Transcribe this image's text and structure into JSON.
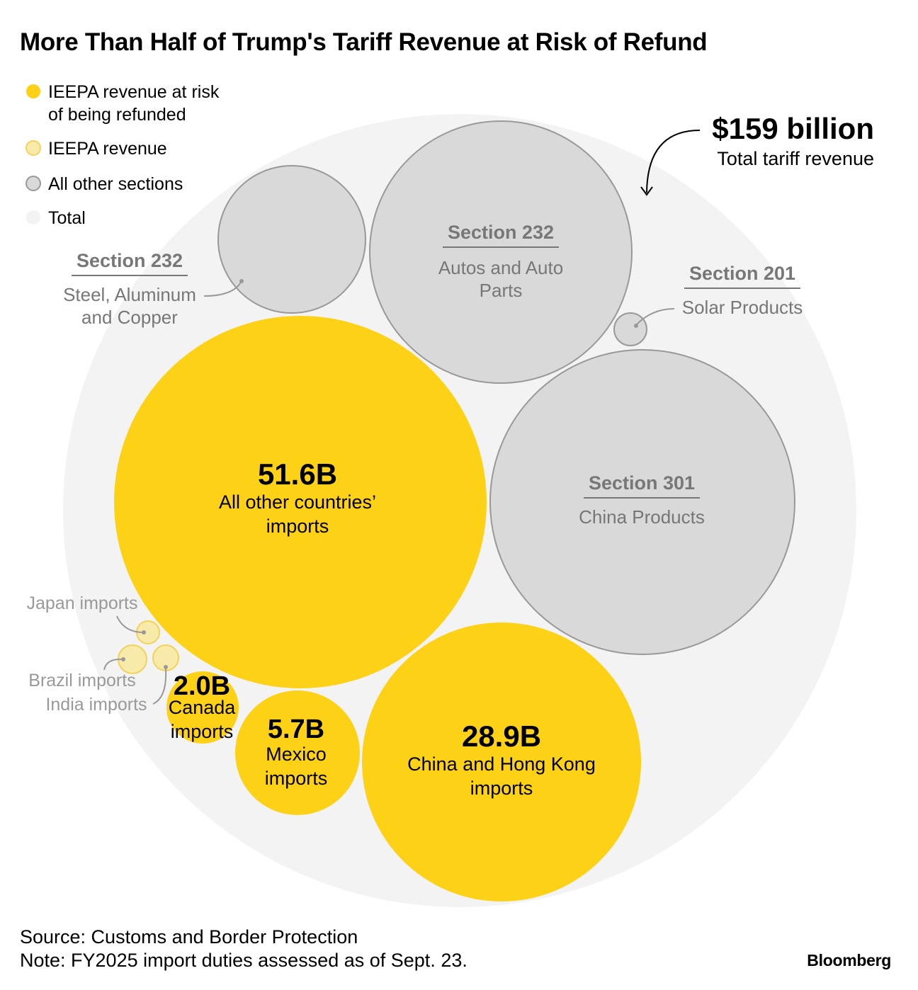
{
  "title": "More Than Half of Trump's Tariff Revenue at Risk of Refund",
  "source": "Source: Customs and Border Protection",
  "note": "Note: FY2025 import duties assessed as of Sept. 23.",
  "brand": "Bloomberg",
  "colors": {
    "ieepa_refund": "#fcd116",
    "ieepa": "#f8eaa9",
    "other_sections": "#d9d9d9",
    "total": "#f3f3f3",
    "circle_stroke": "#999999",
    "muted_text": "#777777"
  },
  "legend": [
    {
      "label_lines": [
        "IEEPA revenue at risk",
        "of being refunded"
      ],
      "color_key": "ieepa_refund"
    },
    {
      "label_lines": [
        "IEEPA revenue"
      ],
      "color_key": "ieepa"
    },
    {
      "label_lines": [
        "All other sections"
      ],
      "color_key": "other_sections"
    },
    {
      "label_lines": [
        "Total"
      ],
      "color_key": "total"
    }
  ],
  "chart_data": {
    "type": "bubble",
    "total": {
      "value_label": "$159 billion",
      "label": "Total tariff revenue",
      "value": 159
    },
    "bubbles": [
      {
        "id": "all-other-countries",
        "group": "ieepa_refund",
        "value": 51.6,
        "value_label": "51.6B",
        "label_lines": [
          "All other countries’",
          "imports"
        ]
      },
      {
        "id": "china-hk",
        "group": "ieepa_refund",
        "value": 28.9,
        "value_label": "28.9B",
        "label_lines": [
          "China and Hong Kong",
          "imports"
        ]
      },
      {
        "id": "mexico",
        "group": "ieepa_refund",
        "value": 5.7,
        "value_label": "5.7B",
        "label_lines": [
          "Mexico",
          "imports"
        ]
      },
      {
        "id": "canada",
        "group": "ieepa_refund",
        "value": 2.0,
        "value_label": "2.0B",
        "label_lines": [
          "Canada",
          "imports"
        ]
      },
      {
        "id": "japan",
        "group": "ieepa",
        "label_lines": [
          "Japan imports"
        ]
      },
      {
        "id": "brazil",
        "group": "ieepa",
        "label_lines": [
          "Brazil imports"
        ]
      },
      {
        "id": "india",
        "group": "ieepa",
        "label_lines": [
          "India imports"
        ]
      },
      {
        "id": "s232-autos",
        "group": "other_sections",
        "section": "Section 232",
        "label_lines": [
          "Autos and Auto",
          "Parts"
        ]
      },
      {
        "id": "s232-steel",
        "group": "other_sections",
        "section": "Section 232",
        "label_lines": [
          "Steel, Aluminum",
          "and Copper"
        ]
      },
      {
        "id": "s301-china",
        "group": "other_sections",
        "section": "Section 301",
        "label_lines": [
          "China Products"
        ]
      },
      {
        "id": "s201-solar",
        "group": "other_sections",
        "section": "Section 201",
        "label_lines": [
          "Solar Products"
        ]
      }
    ]
  }
}
